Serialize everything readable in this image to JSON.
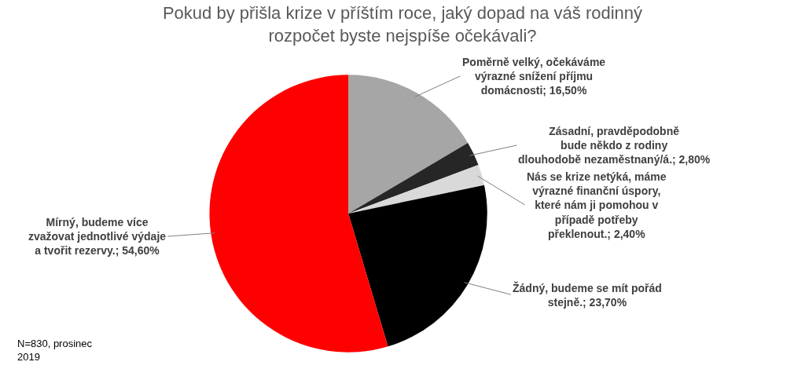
{
  "chart_data": {
    "type": "pie",
    "title": "Pokud by přišla krize v příštím roce, jaký dopad na váš rodinný rozpočet byste nejspíše očekávali?",
    "categories": [
      "Poměrně velký, očekáváme výrazné snížení příjmu domácnosti",
      "Zásadní, pravděpodobně bude někdo z rodiny dlouhodobě nezaměstnaný/á.",
      "Nás se krize netýká, máme výrazné finanční úspory, které nám ji pomohou v případě potřeby překlenout.",
      "Žádný, budeme se mít pořád stejně.",
      "Mírný, budeme více zvažovat jednotlivé výdaje a tvořit rezervy."
    ],
    "values": [
      16.5,
      2.8,
      2.4,
      23.7,
      54.6
    ],
    "value_labels": [
      "16,50%",
      "2,80%",
      "2,40%",
      "23,70%",
      "54,60%"
    ],
    "colors": [
      "#a6a6a6",
      "#262626",
      "#d9d9d9",
      "#000000",
      "#ff0000"
    ],
    "annotations": [
      "N=830, prosinec 2019"
    ],
    "legend": false
  }
}
